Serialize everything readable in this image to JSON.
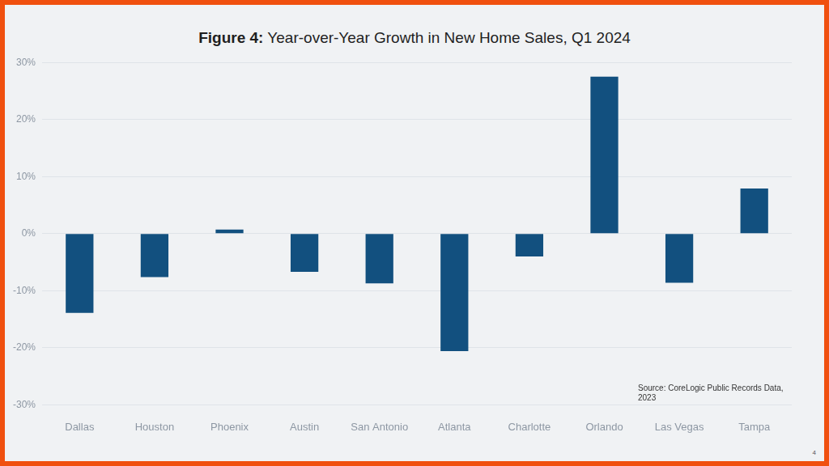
{
  "chart_data": {
    "type": "bar",
    "title": "Figure 4: Year-over-Year Growth in New Home Sales, Q1 2024",
    "categories": [
      "Dallas",
      "Houston",
      "Phoenix",
      "Austin",
      "San Antonio",
      "Atlanta",
      "Charlotte",
      "Orlando",
      "Las Vegas",
      "Tampa"
    ],
    "values": [
      -13.9,
      -7.6,
      0.7,
      -6.7,
      -8.7,
      -20.6,
      -4.0,
      27.5,
      -8.6,
      7.9
    ],
    "color": "#12507f",
    "ylim": [
      -30,
      30
    ],
    "yticks": [
      {
        "value": -30,
        "label": "-30%"
      },
      {
        "value": -20,
        "label": "-20%"
      },
      {
        "value": -10,
        "label": "-10%"
      },
      {
        "value": 0,
        "label": "0%"
      },
      {
        "value": 10,
        "label": "10%"
      },
      {
        "value": 20,
        "label": "20%"
      },
      {
        "value": 30,
        "label": "30%"
      }
    ],
    "grid": true,
    "annotations": [
      "Source: CoreLogic Public Records Data, 2023"
    ]
  },
  "page": {
    "number": "4"
  }
}
